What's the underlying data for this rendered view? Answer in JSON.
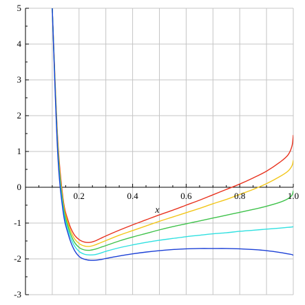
{
  "chart_data": {
    "type": "line",
    "title": "",
    "xlabel": "x",
    "ylabel": "",
    "xlim": [
      0,
      1.0
    ],
    "ylim": [
      -3,
      5
    ],
    "grid": true,
    "x_ticks": [
      0.2,
      0.4,
      0.6,
      0.8,
      1.0
    ],
    "x_tick_labels": [
      "0.2",
      "0.4",
      "0.6",
      "0.8",
      "1.0"
    ],
    "y_ticks": [
      -3,
      -2,
      -1,
      0,
      1,
      2,
      3,
      4,
      5
    ],
    "y_tick_labels": [
      "-3",
      "-2",
      "-1",
      "0",
      "1",
      "2",
      "3",
      "4",
      "5"
    ],
    "x": [
      0.1,
      0.12,
      0.14,
      0.16,
      0.18,
      0.2,
      0.22,
      0.24,
      0.26,
      0.28,
      0.3,
      0.35,
      0.4,
      0.45,
      0.5,
      0.55,
      0.6,
      0.65,
      0.7,
      0.75,
      0.8,
      0.85,
      0.9,
      0.95,
      0.98,
      0.995,
      1.0
    ],
    "series": [
      {
        "color": "#e8321e",
        "values": [
          5.0,
          1.4,
          -0.3,
          -0.95,
          -1.3,
          -1.46,
          -1.53,
          -1.54,
          -1.5,
          -1.43,
          -1.36,
          -1.2,
          -1.05,
          -0.91,
          -0.77,
          -0.64,
          -0.5,
          -0.36,
          -0.21,
          -0.06,
          0.09,
          0.26,
          0.45,
          0.7,
          0.9,
          1.15,
          1.45
        ]
      },
      {
        "color": "#f2c619",
        "values": [
          5.0,
          1.3,
          -0.38,
          -1.03,
          -1.4,
          -1.57,
          -1.64,
          -1.65,
          -1.61,
          -1.55,
          -1.49,
          -1.34,
          -1.21,
          -1.08,
          -0.95,
          -0.83,
          -0.71,
          -0.59,
          -0.46,
          -0.34,
          -0.2,
          -0.06,
          0.1,
          0.3,
          0.45,
          0.6,
          0.75
        ]
      },
      {
        "color": "#3ec24a",
        "values": [
          5.0,
          1.2,
          -0.46,
          -1.12,
          -1.5,
          -1.68,
          -1.75,
          -1.76,
          -1.73,
          -1.68,
          -1.63,
          -1.5,
          -1.39,
          -1.29,
          -1.19,
          -1.1,
          -1.02,
          -0.94,
          -0.86,
          -0.78,
          -0.7,
          -0.62,
          -0.53,
          -0.42,
          -0.32,
          -0.22,
          -0.1
        ]
      },
      {
        "color": "#2ee0e0",
        "values": [
          5.0,
          1.1,
          -0.55,
          -1.22,
          -1.6,
          -1.79,
          -1.87,
          -1.89,
          -1.88,
          -1.84,
          -1.79,
          -1.69,
          -1.61,
          -1.54,
          -1.48,
          -1.43,
          -1.38,
          -1.34,
          -1.3,
          -1.27,
          -1.23,
          -1.2,
          -1.17,
          -1.14,
          -1.12,
          -1.11,
          -1.1
        ]
      },
      {
        "color": "#1a3fd6",
        "values": [
          5.0,
          1.0,
          -0.65,
          -1.32,
          -1.72,
          -1.93,
          -2.01,
          -2.04,
          -2.04,
          -2.02,
          -1.99,
          -1.92,
          -1.86,
          -1.81,
          -1.77,
          -1.74,
          -1.72,
          -1.71,
          -1.71,
          -1.71,
          -1.72,
          -1.74,
          -1.77,
          -1.82,
          -1.86,
          -1.88,
          -1.9
        ]
      }
    ]
  }
}
